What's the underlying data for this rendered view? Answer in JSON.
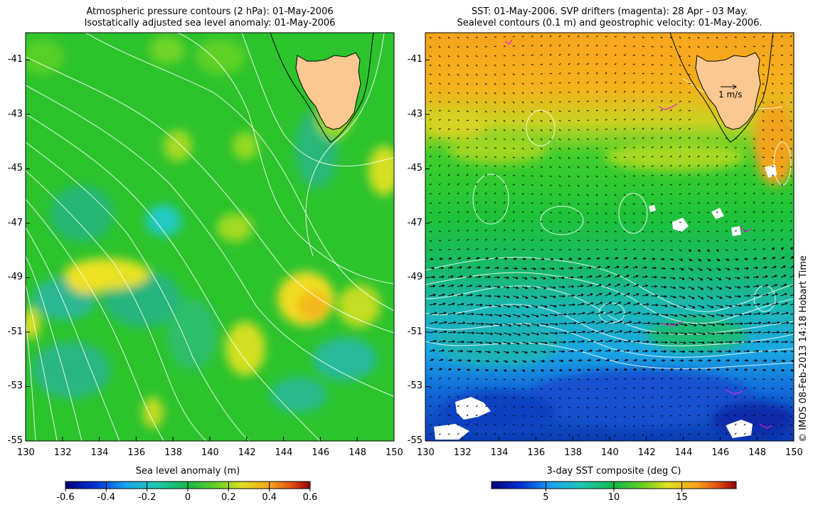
{
  "left_panel": {
    "title_line1": "Atmospheric pressure contours (2 hPa): 01-May-2006",
    "title_line2": "Isostatically adjusted sea level anomaly: 01-May-2006",
    "colorbar_label": "Sea level anomaly (m)",
    "colorbar_ticks": [
      "-0.6",
      "-0.4",
      "-0.2",
      "0",
      "0.2",
      "0.4",
      "0.6"
    ],
    "colorbar_range": [
      -0.6,
      0.6
    ]
  },
  "right_panel": {
    "title_line1": "SST: 01-May-2006. SVP drifters (magenta): 28 Apr - 03 May.",
    "title_line2": "Sealevel contours (0.1 m) and geostrophic velocity: 01-May-2006.",
    "colorbar_label": "3-day SST composite (deg C)",
    "colorbar_ticks": [
      "5",
      "10",
      "15"
    ],
    "colorbar_range": [
      1,
      19
    ],
    "velocity_scale_label": "1 m/s"
  },
  "axes": {
    "x_ticks": [
      "130",
      "132",
      "134",
      "136",
      "138",
      "140",
      "142",
      "144",
      "146",
      "148",
      "150"
    ],
    "y_ticks": [
      "-41",
      "-43",
      "-45",
      "-47",
      "-49",
      "-51",
      "-53",
      "-55"
    ],
    "x_range": [
      130,
      150
    ],
    "y_range": [
      -55,
      -40
    ]
  },
  "credit": "© IMOS 08-Feb-2013 14:18 Hobart Time",
  "colors": {
    "land": "#fbc892",
    "sla_mid": "#1fbf3f",
    "sst_warm": "#f5a21a",
    "sst_cool": "#16b2e6",
    "velocity_arrow": "#000000",
    "drifter": "#e020e0",
    "contour": "#ffffff"
  }
}
